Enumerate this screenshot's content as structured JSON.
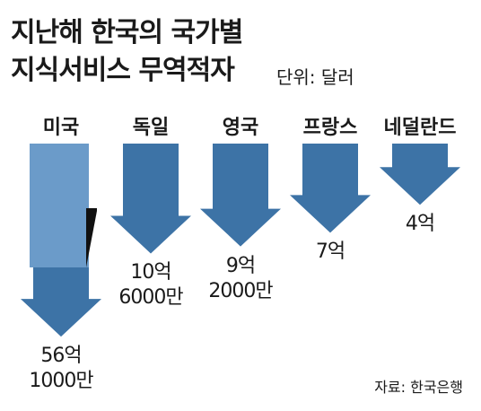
{
  "chart_data": {
    "type": "arrow",
    "title": "지난해 한국의 국가별\n지식서비스 무역적자",
    "subtitle": "단위: 달러",
    "source": "자료: 한국은행",
    "categories": [
      "미국",
      "독일",
      "영국",
      "프랑스",
      "네덜란드"
    ],
    "values": [
      5610000000,
      1060000000,
      920000000,
      700000000,
      400000000
    ],
    "value_labels": [
      "56억\n1000만",
      "10억\n6000만",
      "9억\n2000만",
      "7억",
      "4억"
    ],
    "color": "#3d73a6"
  }
}
